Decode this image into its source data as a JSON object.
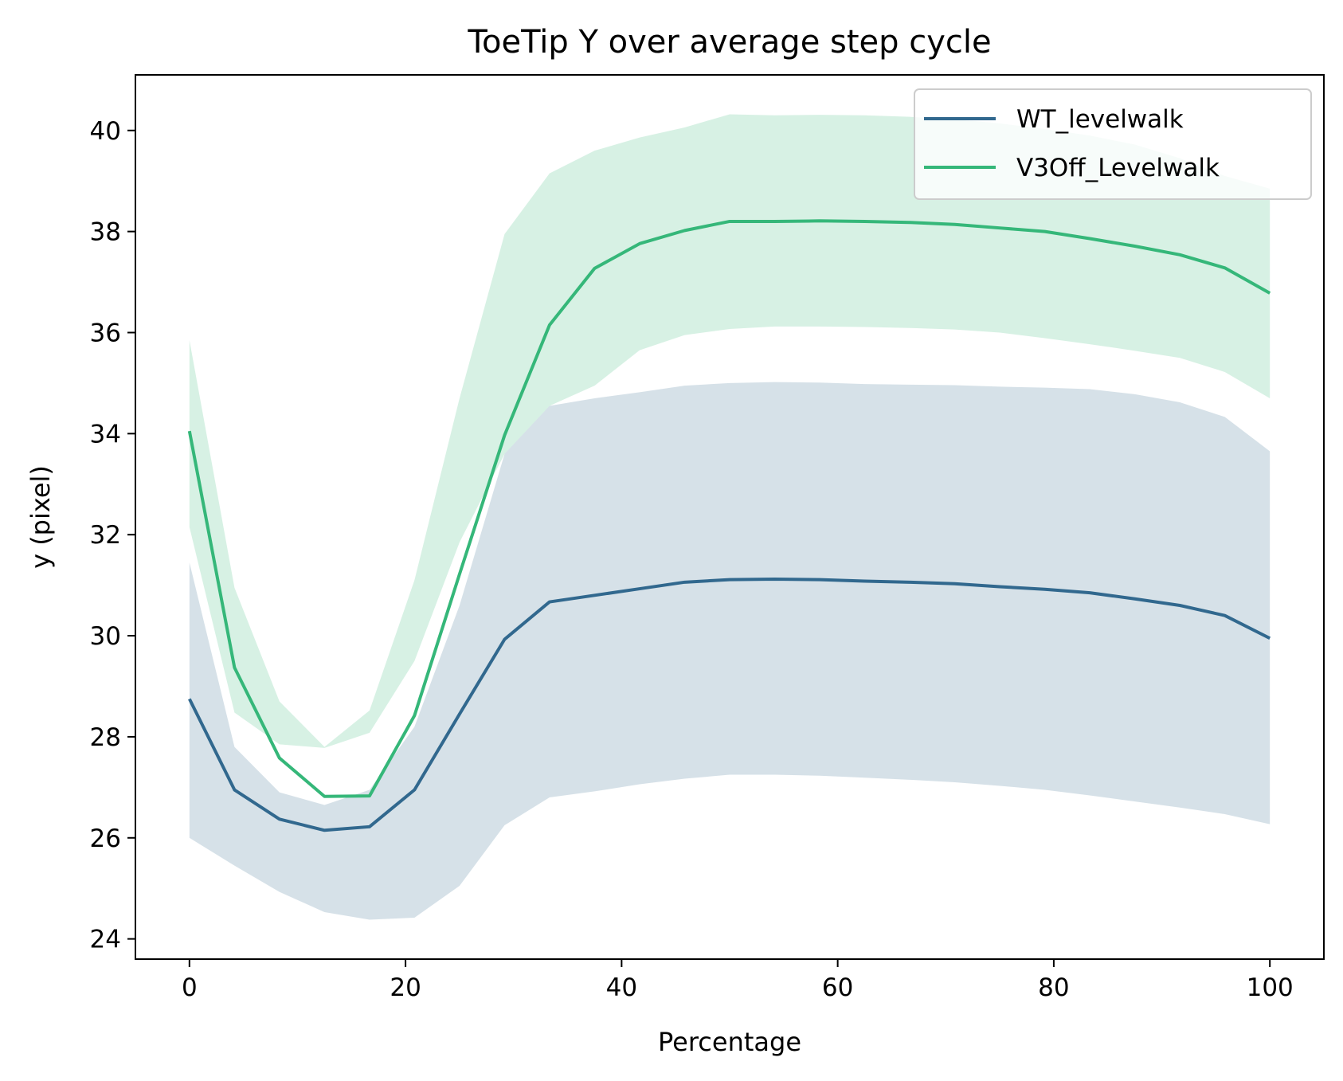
{
  "chart_data": {
    "type": "line",
    "title": "ToeTip Y over average step cycle",
    "xlabel": "Percentage",
    "ylabel": "y (pixel)",
    "xlim": [
      -5,
      105
    ],
    "ylim": [
      23.6,
      41.1
    ],
    "xticks": [
      0,
      20,
      40,
      60,
      80,
      100
    ],
    "yticks": [
      24,
      26,
      28,
      30,
      32,
      34,
      36,
      38,
      40
    ],
    "grid": false,
    "legend_position": "top-right",
    "x": [
      0,
      4.17,
      8.33,
      12.5,
      16.67,
      20.83,
      25,
      29.17,
      33.33,
      37.5,
      41.67,
      45.83,
      50,
      54.17,
      58.33,
      62.5,
      66.67,
      70.83,
      75,
      79.17,
      83.33,
      87.5,
      91.67,
      95.83,
      100
    ],
    "series": [
      {
        "name": "WT_levelwalk",
        "color": "#31688e",
        "band_opacity": 0.2,
        "values": [
          28.75,
          26.95,
          26.37,
          26.15,
          26.22,
          26.95,
          28.45,
          29.93,
          30.67,
          30.8,
          30.93,
          31.06,
          31.11,
          31.12,
          31.11,
          31.08,
          31.06,
          31.03,
          30.97,
          30.92,
          30.85,
          30.73,
          30.6,
          30.4,
          29.95
        ],
        "upper": [
          31.45,
          27.8,
          26.9,
          26.65,
          26.95,
          28.2,
          30.6,
          33.6,
          34.55,
          34.7,
          34.82,
          34.95,
          35.0,
          35.02,
          35.01,
          34.98,
          34.97,
          34.96,
          34.93,
          34.91,
          34.88,
          34.78,
          34.62,
          34.33,
          33.65
        ],
        "lower": [
          26.0,
          25.45,
          24.93,
          24.53,
          24.38,
          24.42,
          25.05,
          26.25,
          26.8,
          26.92,
          27.06,
          27.17,
          27.25,
          27.25,
          27.23,
          27.19,
          27.15,
          27.1,
          27.03,
          26.95,
          26.84,
          26.72,
          26.6,
          26.47,
          26.27
        ]
      },
      {
        "name": "V3Off_Levelwalk",
        "color": "#35b779",
        "band_opacity": 0.2,
        "values": [
          34.05,
          29.37,
          27.58,
          26.82,
          26.83,
          28.42,
          31.22,
          33.97,
          36.15,
          37.27,
          37.76,
          38.02,
          38.2,
          38.2,
          38.21,
          38.2,
          38.18,
          38.14,
          38.07,
          38.0,
          37.86,
          37.71,
          37.54,
          37.28,
          36.78
        ],
        "upper": [
          35.85,
          30.95,
          28.7,
          27.8,
          28.52,
          31.1,
          34.7,
          37.95,
          39.15,
          39.6,
          39.86,
          40.06,
          40.32,
          40.3,
          40.31,
          40.3,
          40.27,
          40.22,
          40.14,
          40.03,
          39.9,
          39.72,
          39.45,
          39.1,
          38.85
        ],
        "lower": [
          32.15,
          28.48,
          27.85,
          27.78,
          28.08,
          29.5,
          31.85,
          33.6,
          34.55,
          34.95,
          35.65,
          35.95,
          36.07,
          36.12,
          36.12,
          36.11,
          36.09,
          36.06,
          36.0,
          35.89,
          35.77,
          35.64,
          35.5,
          35.22,
          34.7
        ]
      }
    ]
  }
}
